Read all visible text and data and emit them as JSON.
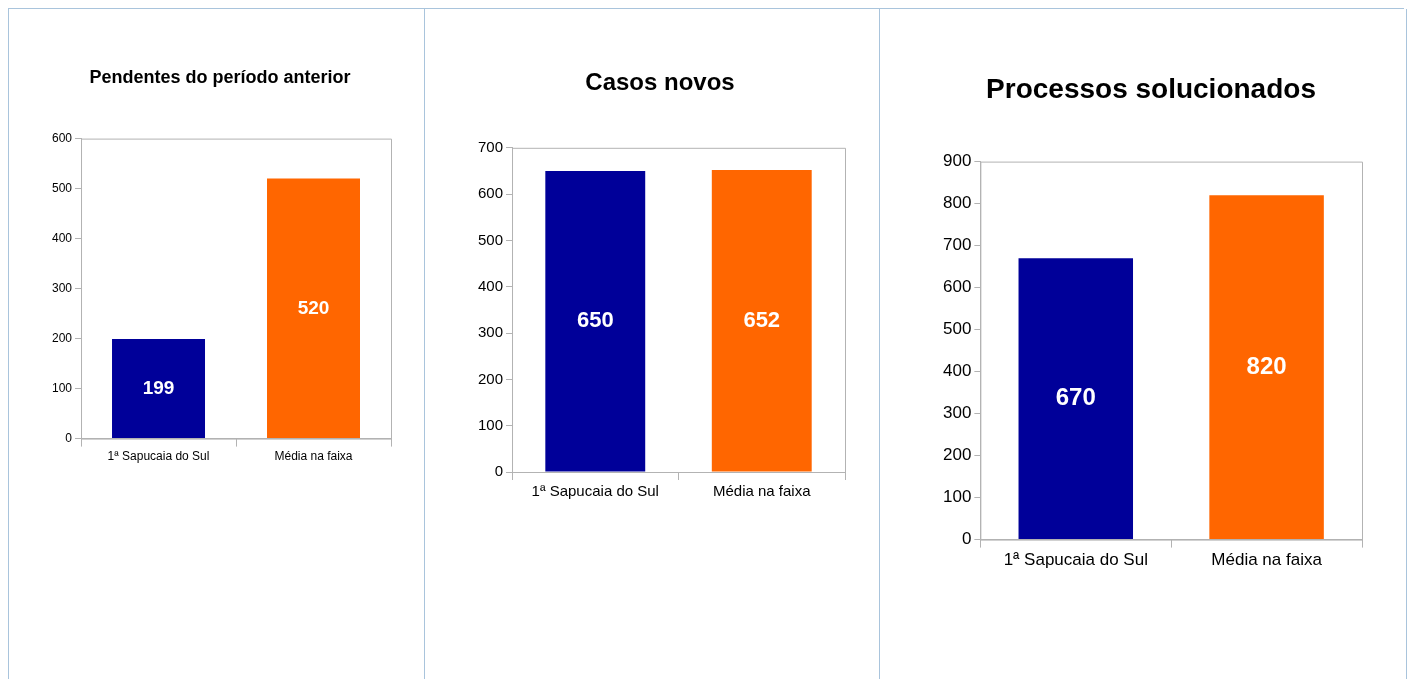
{
  "chart_data": [
    {
      "type": "bar",
      "title": "Pendentes do período anterior",
      "categories": [
        "1ª Sapucaia do Sul",
        "Média na faixa"
      ],
      "values": [
        199,
        520
      ],
      "colors": [
        "#000099",
        "#ff6600"
      ],
      "ylim": [
        0,
        600
      ],
      "yticks": [
        0,
        100,
        200,
        300,
        400,
        500,
        600
      ],
      "grid": false,
      "legend": false,
      "data_labels": true
    },
    {
      "type": "bar",
      "title": "Casos novos",
      "categories": [
        "1ª Sapucaia do Sul",
        "Média na faixa"
      ],
      "values": [
        650,
        652
      ],
      "colors": [
        "#000099",
        "#ff6600"
      ],
      "ylim": [
        0,
        700
      ],
      "yticks": [
        0,
        100,
        200,
        300,
        400,
        500,
        600,
        700
      ],
      "grid": false,
      "legend": false,
      "data_labels": true
    },
    {
      "type": "bar",
      "title": "Processos solucionados",
      "categories": [
        "1ª Sapucaia do Sul",
        "Média na faixa"
      ],
      "values": [
        670,
        820
      ],
      "colors": [
        "#000099",
        "#ff6600"
      ],
      "ylim": [
        0,
        900
      ],
      "yticks": [
        0,
        100,
        200,
        300,
        400,
        500,
        600,
        700,
        800,
        900
      ],
      "grid": false,
      "legend": false,
      "data_labels": true
    }
  ]
}
